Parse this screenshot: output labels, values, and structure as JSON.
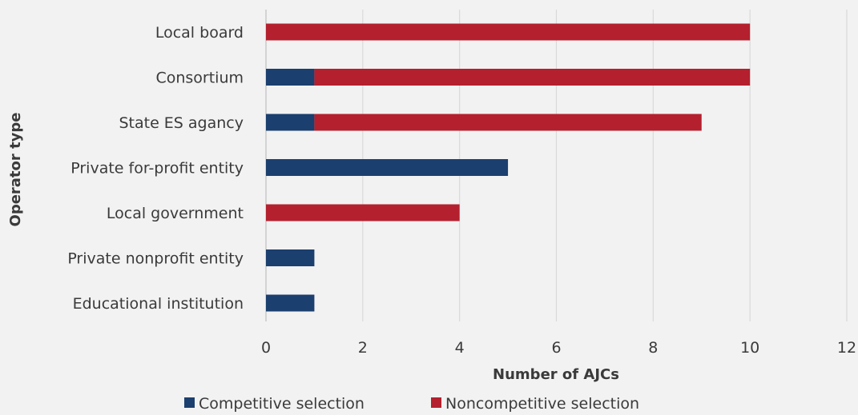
{
  "chart_data": {
    "type": "bar",
    "orientation": "horizontal",
    "stacked": true,
    "categories": [
      "Local board",
      "Consortium",
      "State ES agancy",
      "Private for-profit entity",
      "Local government",
      "Private nonprofit entity",
      "Educational institution"
    ],
    "series": [
      {
        "name": "Competitive selection",
        "color": "#1b3f6e",
        "values": [
          0,
          1,
          1,
          5,
          0,
          1,
          1
        ]
      },
      {
        "name": "Noncompetitive selection",
        "color": "#b4202e",
        "values": [
          10,
          9,
          8,
          0,
          4,
          0,
          0
        ]
      }
    ],
    "xlabel": "Number of AJCs",
    "ylabel": "Operator type",
    "xlim": [
      0,
      12
    ],
    "xticks": [
      "0",
      "2",
      "4",
      "6",
      "8",
      "10",
      "12"
    ],
    "grid": true,
    "legend_position": "bottom"
  }
}
